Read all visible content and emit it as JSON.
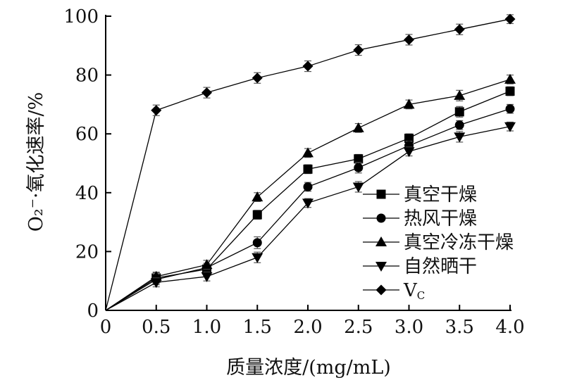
{
  "chart_data": {
    "type": "line",
    "x": [
      0,
      0.5,
      1.0,
      1.5,
      2.0,
      2.5,
      3.0,
      3.5,
      4.0
    ],
    "x_tick_labels": [
      "0",
      "0.5",
      "1.0",
      "1.5",
      "2.0",
      "2.5",
      "3.0",
      "3.5",
      "4.0"
    ],
    "y_ticks": [
      0,
      20,
      40,
      60,
      80,
      100
    ],
    "y_tick_labels": [
      "0",
      "20",
      "40",
      "60",
      "80",
      "100"
    ],
    "xlim": [
      0,
      4.0
    ],
    "ylim": [
      0,
      100
    ],
    "xlabel": "质量浓度/(mg/mL)",
    "ylabel": "O₂⁻·氧化速率/%",
    "grid": false,
    "legend_position": "lower-right",
    "color": "#000000",
    "series": [
      {
        "name": "真空干燥",
        "marker": "square",
        "values": [
          0,
          11.0,
          14.0,
          32.5,
          48.0,
          51.5,
          58.5,
          67.5,
          74.5
        ],
        "errors": [
          0,
          1.8,
          1.5,
          1.5,
          1.5,
          1.5,
          1.5,
          1.8,
          1.5
        ]
      },
      {
        "name": "热风干燥",
        "marker": "circle",
        "values": [
          0,
          10.5,
          14.5,
          23.0,
          42.0,
          48.5,
          56.0,
          63.0,
          68.5
        ],
        "errors": [
          0,
          1.8,
          1.5,
          2.0,
          1.5,
          1.8,
          1.5,
          1.5,
          1.5
        ]
      },
      {
        "name": "真空冷冻干燥",
        "marker": "triangle-up",
        "values": [
          0,
          11.5,
          15.5,
          38.5,
          53.5,
          62.0,
          70.0,
          73.0,
          78.5
        ],
        "errors": [
          0,
          1.5,
          1.5,
          1.5,
          1.5,
          1.5,
          1.5,
          1.8,
          1.5
        ]
      },
      {
        "name": "自然晒干",
        "marker": "triangle-down",
        "values": [
          0,
          9.5,
          11.5,
          18.0,
          36.5,
          42.0,
          54.0,
          59.0,
          62.5
        ],
        "errors": [
          0,
          1.5,
          1.5,
          1.8,
          1.5,
          1.8,
          1.5,
          1.8,
          1.5
        ]
      },
      {
        "name": "V",
        "name_sub": "C",
        "marker": "diamond",
        "values": [
          0,
          68.0,
          74.0,
          79.0,
          83.0,
          88.5,
          92.0,
          95.5,
          99.0
        ],
        "errors": [
          0,
          1.8,
          1.8,
          1.8,
          1.8,
          1.8,
          1.8,
          1.8,
          1.5
        ]
      }
    ]
  }
}
